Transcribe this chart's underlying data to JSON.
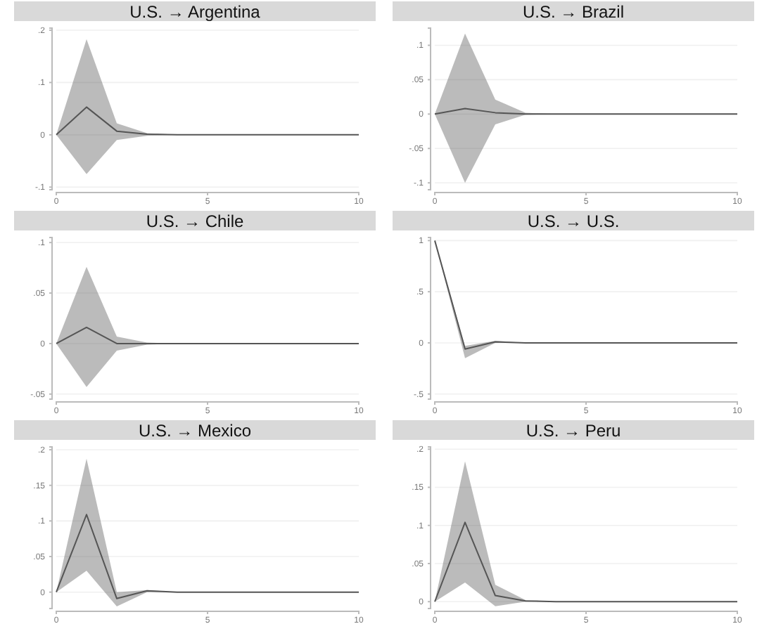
{
  "chart_data": [
    {
      "type": "line",
      "title": "U.S. → Argentina",
      "x": [
        0,
        1,
        2,
        3,
        4,
        5,
        6,
        7,
        8,
        9,
        10
      ],
      "xlim": [
        0,
        10
      ],
      "xticks": [
        0,
        5,
        10
      ],
      "ylim": [
        -0.105,
        0.204
      ],
      "yticks": [
        {
          "value": -0.1,
          "label": "-.1"
        },
        {
          "value": 0,
          "label": "0"
        },
        {
          "value": 0.1,
          "label": ".1"
        },
        {
          "value": 0.2,
          "label": ".2"
        }
      ],
      "grid": "y",
      "series": [
        {
          "color": "#555555",
          "values": [
            0,
            0.053,
            0.007,
            0.001,
            0,
            0,
            0,
            0,
            0,
            0,
            0
          ],
          "lower": [
            0,
            -0.075,
            -0.01,
            -0.002,
            0,
            0,
            0,
            0,
            0,
            0,
            0
          ],
          "upper": [
            0,
            0.183,
            0.022,
            0.003,
            0,
            0,
            0,
            0,
            0,
            0,
            0
          ]
        }
      ]
    },
    {
      "type": "line",
      "title": "U.S. → Brazil",
      "x": [
        0,
        1,
        2,
        3,
        4,
        5,
        6,
        7,
        8,
        9,
        10
      ],
      "xlim": [
        0,
        10
      ],
      "xticks": [
        0,
        5,
        10
      ],
      "ylim": [
        -0.11,
        0.125
      ],
      "yticks": [
        {
          "value": -0.1,
          "label": "-.1"
        },
        {
          "value": -0.05,
          "label": "-.05"
        },
        {
          "value": 0,
          "label": "0"
        },
        {
          "value": 0.05,
          "label": ".05"
        },
        {
          "value": 0.1,
          "label": ".1"
        }
      ],
      "grid": "y",
      "series": [
        {
          "color": "#555555",
          "values": [
            0,
            0.008,
            0.002,
            0,
            0,
            0,
            0,
            0,
            0,
            0,
            0
          ],
          "lower": [
            0,
            -0.1,
            -0.015,
            -0.001,
            0,
            0,
            0,
            0,
            0,
            0,
            0
          ],
          "upper": [
            0,
            0.117,
            0.021,
            0.002,
            0,
            0,
            0,
            0,
            0,
            0,
            0
          ]
        }
      ]
    },
    {
      "type": "line",
      "title": "U.S. → Chile",
      "x": [
        0,
        1,
        2,
        3,
        4,
        5,
        6,
        7,
        8,
        9,
        10
      ],
      "xlim": [
        0,
        10
      ],
      "xticks": [
        0,
        5,
        10
      ],
      "ylim": [
        -0.055,
        0.105
      ],
      "yticks": [
        {
          "value": -0.05,
          "label": "-.05"
        },
        {
          "value": 0,
          "label": "0"
        },
        {
          "value": 0.05,
          "label": ".05"
        },
        {
          "value": 0.1,
          "label": ".1"
        }
      ],
      "grid": "y",
      "series": [
        {
          "color": "#555555",
          "values": [
            0,
            0.016,
            0,
            0,
            0,
            0,
            0,
            0,
            0,
            0,
            0
          ],
          "lower": [
            0,
            -0.043,
            -0.007,
            -0.001,
            0,
            0,
            0,
            0,
            0,
            0,
            0
          ],
          "upper": [
            0,
            0.076,
            0.007,
            0.001,
            0,
            0,
            0,
            0,
            0,
            0,
            0
          ]
        }
      ]
    },
    {
      "type": "line",
      "title": "U.S. → U.S.",
      "x": [
        0,
        1,
        2,
        3,
        4,
        5,
        6,
        7,
        8,
        9,
        10
      ],
      "xlim": [
        0,
        10
      ],
      "xticks": [
        0,
        5,
        10
      ],
      "ylim": [
        -0.55,
        1.03
      ],
      "yticks": [
        {
          "value": -0.5,
          "label": "-.5"
        },
        {
          "value": 0,
          "label": "0"
        },
        {
          "value": 0.5,
          "label": ".5"
        },
        {
          "value": 1,
          "label": "1"
        }
      ],
      "grid": "y",
      "series": [
        {
          "color": "#555555",
          "values": [
            1,
            -0.06,
            0.01,
            0,
            0,
            0,
            0,
            0,
            0,
            0,
            0
          ],
          "lower": [
            1,
            -0.15,
            0,
            0,
            0,
            0,
            0,
            0,
            0,
            0,
            0
          ],
          "upper": [
            1,
            -0.03,
            0.02,
            0,
            0,
            0,
            0,
            0,
            0,
            0,
            0
          ]
        }
      ]
    },
    {
      "type": "line",
      "title": "U.S. → Mexico",
      "x": [
        0,
        1,
        2,
        3,
        4,
        5,
        6,
        7,
        8,
        9,
        10
      ],
      "xlim": [
        0,
        10
      ],
      "xticks": [
        0,
        5,
        10
      ],
      "ylim": [
        -0.023,
        0.204
      ],
      "yticks": [
        {
          "value": 0,
          "label": "0"
        },
        {
          "value": 0.05,
          "label": ".05"
        },
        {
          "value": 0.1,
          "label": ".1"
        },
        {
          "value": 0.15,
          "label": ".15"
        },
        {
          "value": 0.2,
          "label": ".2"
        }
      ],
      "grid": "y",
      "series": [
        {
          "color": "#555555",
          "values": [
            0,
            0.109,
            -0.009,
            0.002,
            0,
            0,
            0,
            0,
            0,
            0,
            0
          ],
          "lower": [
            0,
            0.03,
            -0.02,
            0,
            0,
            0,
            0,
            0,
            0,
            0,
            0
          ],
          "upper": [
            0,
            0.1875,
            0,
            0.003,
            0,
            0,
            0,
            0,
            0,
            0,
            0
          ]
        }
      ]
    },
    {
      "type": "line",
      "title": "U.S. → Peru",
      "x": [
        0,
        1,
        2,
        3,
        4,
        5,
        6,
        7,
        8,
        9,
        10
      ],
      "xlim": [
        0,
        10
      ],
      "xticks": [
        0,
        5,
        10
      ],
      "ylim": [
        -0.009,
        0.203
      ],
      "yticks": [
        {
          "value": 0,
          "label": "0"
        },
        {
          "value": 0.05,
          "label": ".05"
        },
        {
          "value": 0.1,
          "label": ".1"
        },
        {
          "value": 0.15,
          "label": ".15"
        },
        {
          "value": 0.2,
          "label": ".2"
        }
      ],
      "grid": "y",
      "series": [
        {
          "color": "#555555",
          "values": [
            0,
            0.104,
            0.008,
            0.001,
            0,
            0,
            0,
            0,
            0,
            0,
            0
          ],
          "lower": [
            0,
            0.025,
            -0.006,
            0,
            0,
            0,
            0,
            0,
            0,
            0,
            0
          ],
          "upper": [
            0,
            0.184,
            0.022,
            0.002,
            0,
            0,
            0,
            0,
            0,
            0,
            0
          ]
        }
      ]
    }
  ]
}
